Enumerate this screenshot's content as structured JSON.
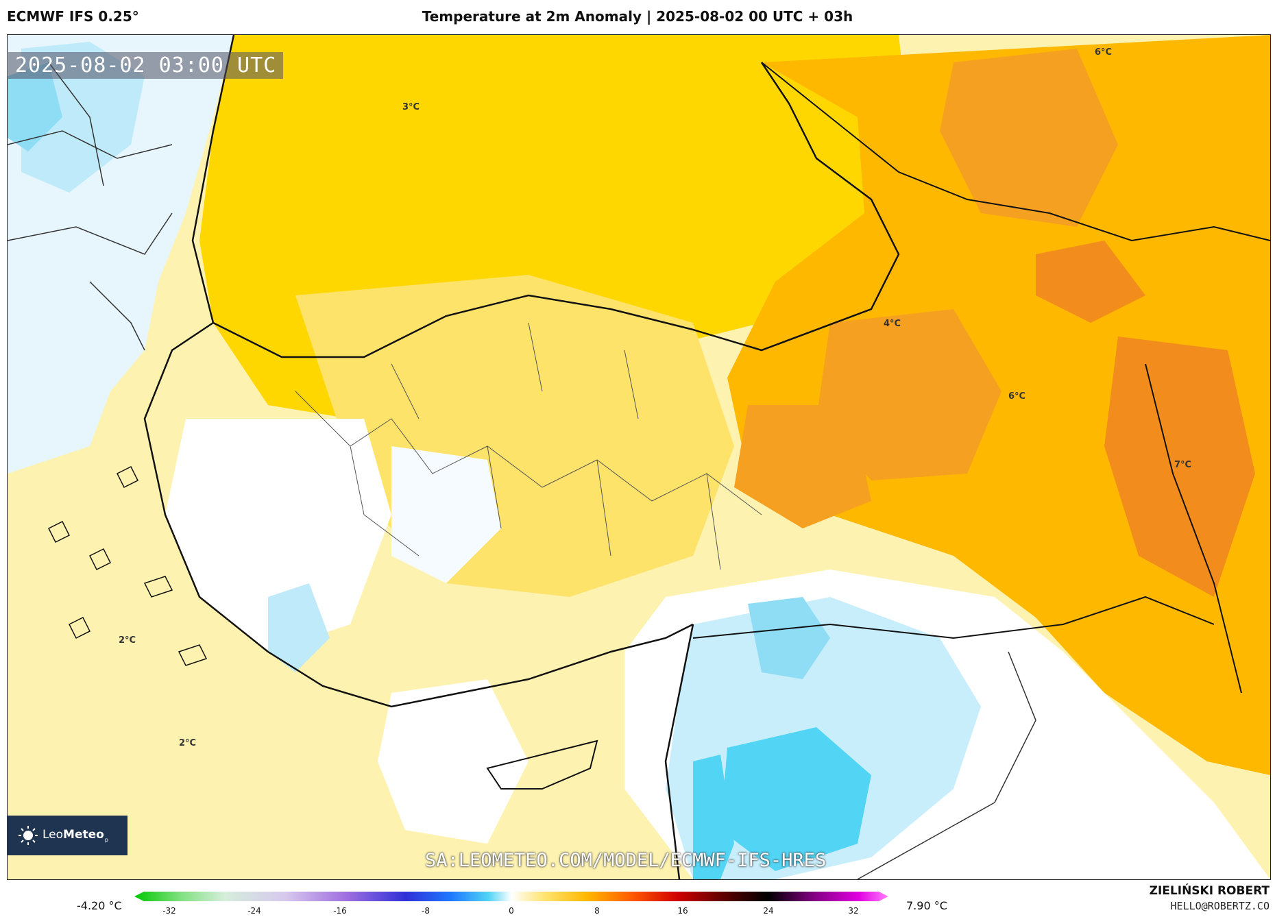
{
  "header": {
    "model": "ECMWF IFS 0.25°",
    "title": "Temperature at 2m Anomaly | 2025-08-02 00 UTC + 03h"
  },
  "map": {
    "valid_time": "2025-08-02 03:00 UTC",
    "isoline_labels": [
      "3°C",
      "4°C",
      "6°C",
      "6°C",
      "7°C",
      "2°C",
      "2°C"
    ]
  },
  "logo": {
    "name_light": "Leo",
    "name_bold": "Meteo",
    "suffix": "p"
  },
  "watermark": "SA:LEOMETEO.COM/MODEL/ECMWF-IFS-HRES",
  "legend": {
    "min_label": "-4.20 °C",
    "max_label": "7.90 °C",
    "ticks": [
      "-32",
      "-24",
      "-16",
      "-8",
      "0",
      "8",
      "16",
      "24",
      "32"
    ],
    "colors": {
      "warm_dark": "#f28c1c",
      "warm": "#ffb800",
      "yellow": "#ffd700",
      "pale_yellow": "#fdf2b0",
      "white": "#ffffff",
      "light_blue": "#c8eefb",
      "blue": "#52d4f5"
    }
  },
  "credits": {
    "author": "ZIELIŃSKI ROBERT",
    "email": "HELLO@ROBERTZ.CO"
  }
}
